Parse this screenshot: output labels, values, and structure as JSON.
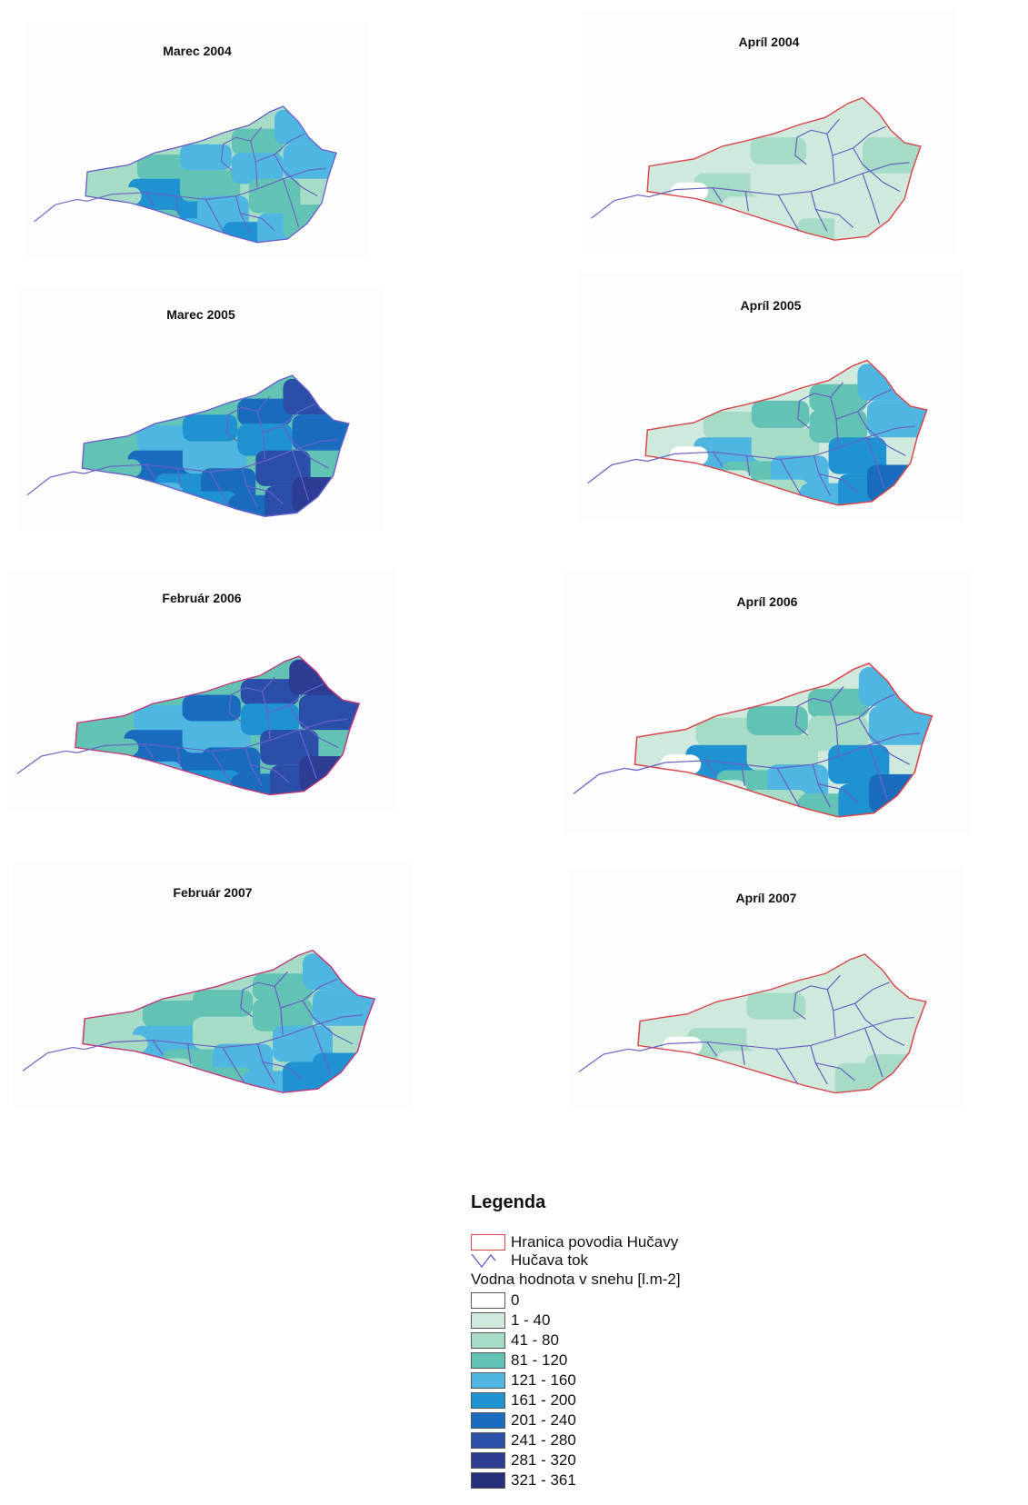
{
  "maps": [
    {
      "title": "Marec 2004",
      "palette": [
        2,
        3,
        4,
        3,
        4,
        5,
        3,
        4,
        4,
        5,
        4,
        3,
        2,
        3,
        4,
        5,
        4,
        3
      ],
      "boundary_color": "#6a5fc8"
    },
    {
      "title": "Apríl 2004",
      "palette": [
        1,
        1,
        2,
        1,
        1,
        2,
        1,
        1,
        2,
        1,
        1,
        1,
        0,
        1,
        1,
        2,
        1,
        1
      ],
      "boundary_color": "#d9464b"
    },
    {
      "title": "Marec 2005",
      "palette": [
        3,
        4,
        5,
        6,
        7,
        6,
        4,
        5,
        6,
        5,
        6,
        7,
        3,
        4,
        5,
        6,
        7,
        8
      ],
      "boundary_color": "#6a5fc8"
    },
    {
      "title": "Apríl 2005",
      "palette": [
        1,
        2,
        3,
        3,
        4,
        4,
        2,
        3,
        4,
        3,
        4,
        5,
        0,
        1,
        2,
        4,
        5,
        6
      ],
      "boundary_color": "#d9464b"
    },
    {
      "title": "Február 2006",
      "palette": [
        3,
        4,
        6,
        7,
        8,
        6,
        4,
        5,
        7,
        6,
        6,
        7,
        3,
        4,
        5,
        6,
        7,
        8
      ],
      "boundary_color": "#c23a7a"
    },
    {
      "title": "Apríl 2006",
      "palette": [
        1,
        2,
        3,
        3,
        4,
        5,
        2,
        2,
        4,
        3,
        4,
        5,
        0,
        1,
        2,
        3,
        5,
        6
      ],
      "boundary_color": "#d9464b"
    },
    {
      "title": "Február 2007",
      "palette": [
        2,
        3,
        3,
        3,
        4,
        4,
        2,
        3,
        4,
        3,
        4,
        4,
        2,
        2,
        3,
        4,
        5,
        5
      ],
      "boundary_color": "#c23a7a"
    },
    {
      "title": "Apríl 2007",
      "palette": [
        1,
        1,
        2,
        1,
        1,
        2,
        1,
        1,
        1,
        1,
        1,
        1,
        0,
        1,
        1,
        1,
        2,
        2
      ],
      "boundary_color": "#d9464b"
    }
  ],
  "legend": {
    "title": "Legenda",
    "boundary_label": "Hranica povodia Hučavy",
    "river_label": "Hučava tok",
    "unit_label": "Vodna hodnota v snehu [l.m-2]",
    "classes": [
      {
        "label": "0",
        "color": "#ffffff"
      },
      {
        "label": "1 - 40",
        "color": "#cfe9dc"
      },
      {
        "label": "41 - 80",
        "color": "#a6dcc6"
      },
      {
        "label": "81 - 120",
        "color": "#62c3b4"
      },
      {
        "label": "121 - 160",
        "color": "#4fb6e2"
      },
      {
        "label": "161 - 200",
        "color": "#1f93d2"
      },
      {
        "label": "201 - 240",
        "color": "#1a6cbf"
      },
      {
        "label": "241 - 280",
        "color": "#2b4ea8"
      },
      {
        "label": "281 - 320",
        "color": "#2c3d93"
      },
      {
        "label": "321 - 361",
        "color": "#262f7a"
      }
    ],
    "boundary_color": "#d9464b",
    "river_color": "#6a63c4"
  }
}
